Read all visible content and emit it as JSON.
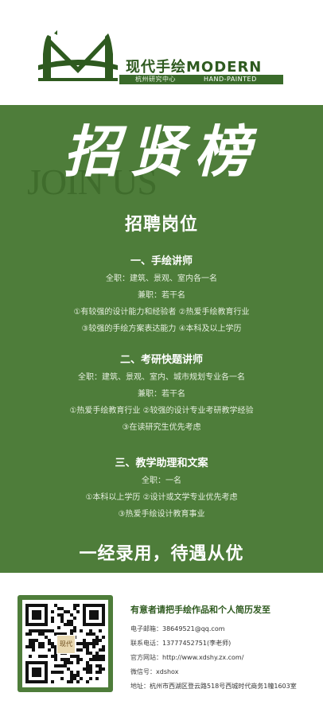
{
  "header": {
    "brand_name": "现代手绘MODERN",
    "brand_sub_zh": "杭州研究中心",
    "brand_sub_en": "HAND-PAINTED"
  },
  "hero": {
    "title": "招贤榜",
    "join_us": "JOIN US"
  },
  "positions": {
    "heading": "招聘岗位",
    "jobs": [
      {
        "title": "一、手绘讲师",
        "lines": [
          "全职：建筑、景观、室内各一名",
          "兼职：若干名",
          "①有较强的设计能力和经验者 ②热爱手绘教育行业",
          "③较强的手绘方案表达能力 ④本科及以上学历"
        ]
      },
      {
        "title": "二、考研快题讲师",
        "lines": [
          "全职：建筑、景观、室内、城市规划专业各一名",
          "兼职：若干名",
          "①热爱手绘教育行业 ②较强的设计专业考研教学经验",
          "③在读研究生优先考虑"
        ]
      },
      {
        "title": "三、教学助理和文案",
        "lines": [
          "全职：一名",
          "①本科以上学历 ②设计或文学专业优先考虑",
          "③热爱手绘设计教育事业"
        ]
      }
    ]
  },
  "slogan": "一经录用，待遇从优",
  "footer": {
    "qr_badge": "现代",
    "heading": "有意者请把手绘作品和个人简历发至",
    "contacts": [
      {
        "label": "电子邮箱：",
        "value": "38649521@qq.com"
      },
      {
        "label": "联系电话：",
        "value": "13777452751(李老师)"
      },
      {
        "label": "官方网站：",
        "value": "http://www.xdshy.zx.com/"
      },
      {
        "label": "微信号：",
        "value": "xdshox"
      },
      {
        "label": "地址：",
        "value": "杭州市西湖区登云路518号西城时代商务1幢1603室"
      }
    ]
  },
  "colors": {
    "panel_green": "#4e7d3a",
    "brand_green": "#2e5a1f",
    "text_white": "#ffffff"
  }
}
